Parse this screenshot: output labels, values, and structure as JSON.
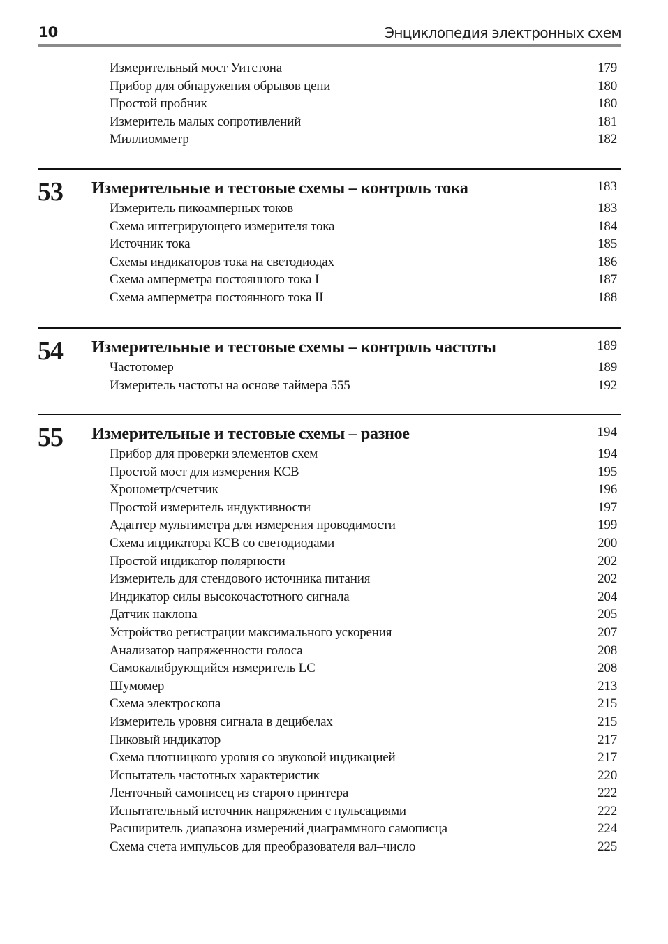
{
  "header": {
    "page_number": "10",
    "book_title": "Энциклопедия электронных схем"
  },
  "top_entries": [
    {
      "title": "Измерительный мост Уитстона",
      "page": "179"
    },
    {
      "title": "Прибор для обнаружения обрывов цепи",
      "page": "180"
    },
    {
      "title": "Простой пробник",
      "page": "180"
    },
    {
      "title": "Измеритель малых сопротивлений",
      "page": "181"
    },
    {
      "title": "Миллиомметр",
      "page": "182"
    }
  ],
  "chapters": [
    {
      "number": "53",
      "title": "Измерительные и тестовые схемы – контроль тока",
      "page": "183",
      "entries": [
        {
          "title": "Измеритель пикоамперных токов",
          "page": "183"
        },
        {
          "title": "Схема интегрирующего измерителя тока",
          "page": "184"
        },
        {
          "title": "Источник тока",
          "page": "185"
        },
        {
          "title": "Схемы индикаторов тока на светодиодах",
          "page": "186"
        },
        {
          "title": "Схема амперметра постоянного тока I",
          "page": "187"
        },
        {
          "title": "Схема амперметра постоянного тока II",
          "page": "188"
        }
      ]
    },
    {
      "number": "54",
      "title": "Измерительные и тестовые схемы – контроль частоты",
      "page": "189",
      "entries": [
        {
          "title": "Частотомер",
          "page": "189"
        },
        {
          "title": "Измеритель частоты на основе таймера 555",
          "page": "192"
        }
      ]
    },
    {
      "number": "55",
      "title": "Измерительные и тестовые схемы – разное",
      "page": "194",
      "entries": [
        {
          "title": "Прибор для проверки элементов схем",
          "page": "194"
        },
        {
          "title": "Простой мост для измерения КСВ",
          "page": "195"
        },
        {
          "title": "Хронометр/счетчик",
          "page": "196"
        },
        {
          "title": "Простой измеритель индуктивности",
          "page": "197"
        },
        {
          "title": "Адаптер мультиметра для измерения проводимости",
          "page": "199"
        },
        {
          "title": "Схема индикатора КСВ со светодиодами",
          "page": "200"
        },
        {
          "title": "Простой индикатор полярности",
          "page": "202"
        },
        {
          "title": "Измеритель для стендового источника питания",
          "page": "202"
        },
        {
          "title": "Индикатор силы высокочастотного сигнала",
          "page": "204"
        },
        {
          "title": "Датчик наклона",
          "page": "205"
        },
        {
          "title": "Устройство регистрации максимального ускорения",
          "page": "207"
        },
        {
          "title": "Анализатор напряженности голоса",
          "page": "208"
        },
        {
          "title": "Самокалибрующийся измеритель LC",
          "page": "208"
        },
        {
          "title": "Шумомер",
          "page": "213"
        },
        {
          "title": "Схема электроскопа",
          "page": "215"
        },
        {
          "title": "Измеритель уровня сигнала в децибелах",
          "page": "215"
        },
        {
          "title": "Пиковый индикатор",
          "page": "217"
        },
        {
          "title": "Схема плотницкого уровня со звуковой индикацией",
          "page": "217"
        },
        {
          "title": "Испытатель частотных характеристик",
          "page": "220"
        },
        {
          "title": "Ленточный самописец из старого принтера",
          "page": "222"
        },
        {
          "title": "Испытательный источник напряжения с пульсациями",
          "page": "222"
        },
        {
          "title": "Расширитель диапазона измерений диаграммного самописца",
          "page": "224"
        },
        {
          "title": "Схема счета импульсов для преобразователя вал–число",
          "page": "225"
        }
      ]
    }
  ]
}
